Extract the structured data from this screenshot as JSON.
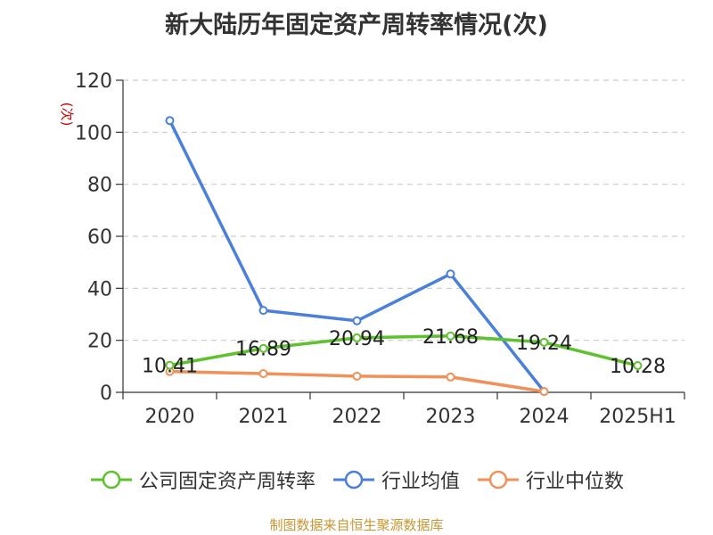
{
  "chart_data": {
    "type": "line",
    "title": "新大陆历年固定资产周转率情况(次)",
    "ylabel": "(次)",
    "xlabel": "",
    "ylim": [
      0,
      120
    ],
    "yticks": [
      0,
      20,
      40,
      60,
      80,
      100,
      120
    ],
    "grid": true,
    "legend_position": "bottom",
    "categories": [
      "2020",
      "2021",
      "2022",
      "2023",
      "2024",
      "2025H1"
    ],
    "series": [
      {
        "name": "公司固定资产周转率",
        "color": "#5ec12d",
        "values": [
          10.41,
          16.89,
          20.94,
          21.68,
          19.24,
          10.28
        ],
        "labels": [
          "10.41",
          "16.89",
          "20.94",
          "21.68",
          "19.24",
          "10.28"
        ]
      },
      {
        "name": "行业均值",
        "color": "#4a7fdc",
        "values": [
          104.5,
          31.5,
          27.5,
          45.5,
          0.3,
          null
        ]
      },
      {
        "name": "行业中位数",
        "color": "#f0915a",
        "values": [
          8.0,
          7.2,
          6.2,
          5.9,
          0.3,
          null
        ]
      }
    ],
    "source": "制图数据来自恒生聚源数据库"
  }
}
